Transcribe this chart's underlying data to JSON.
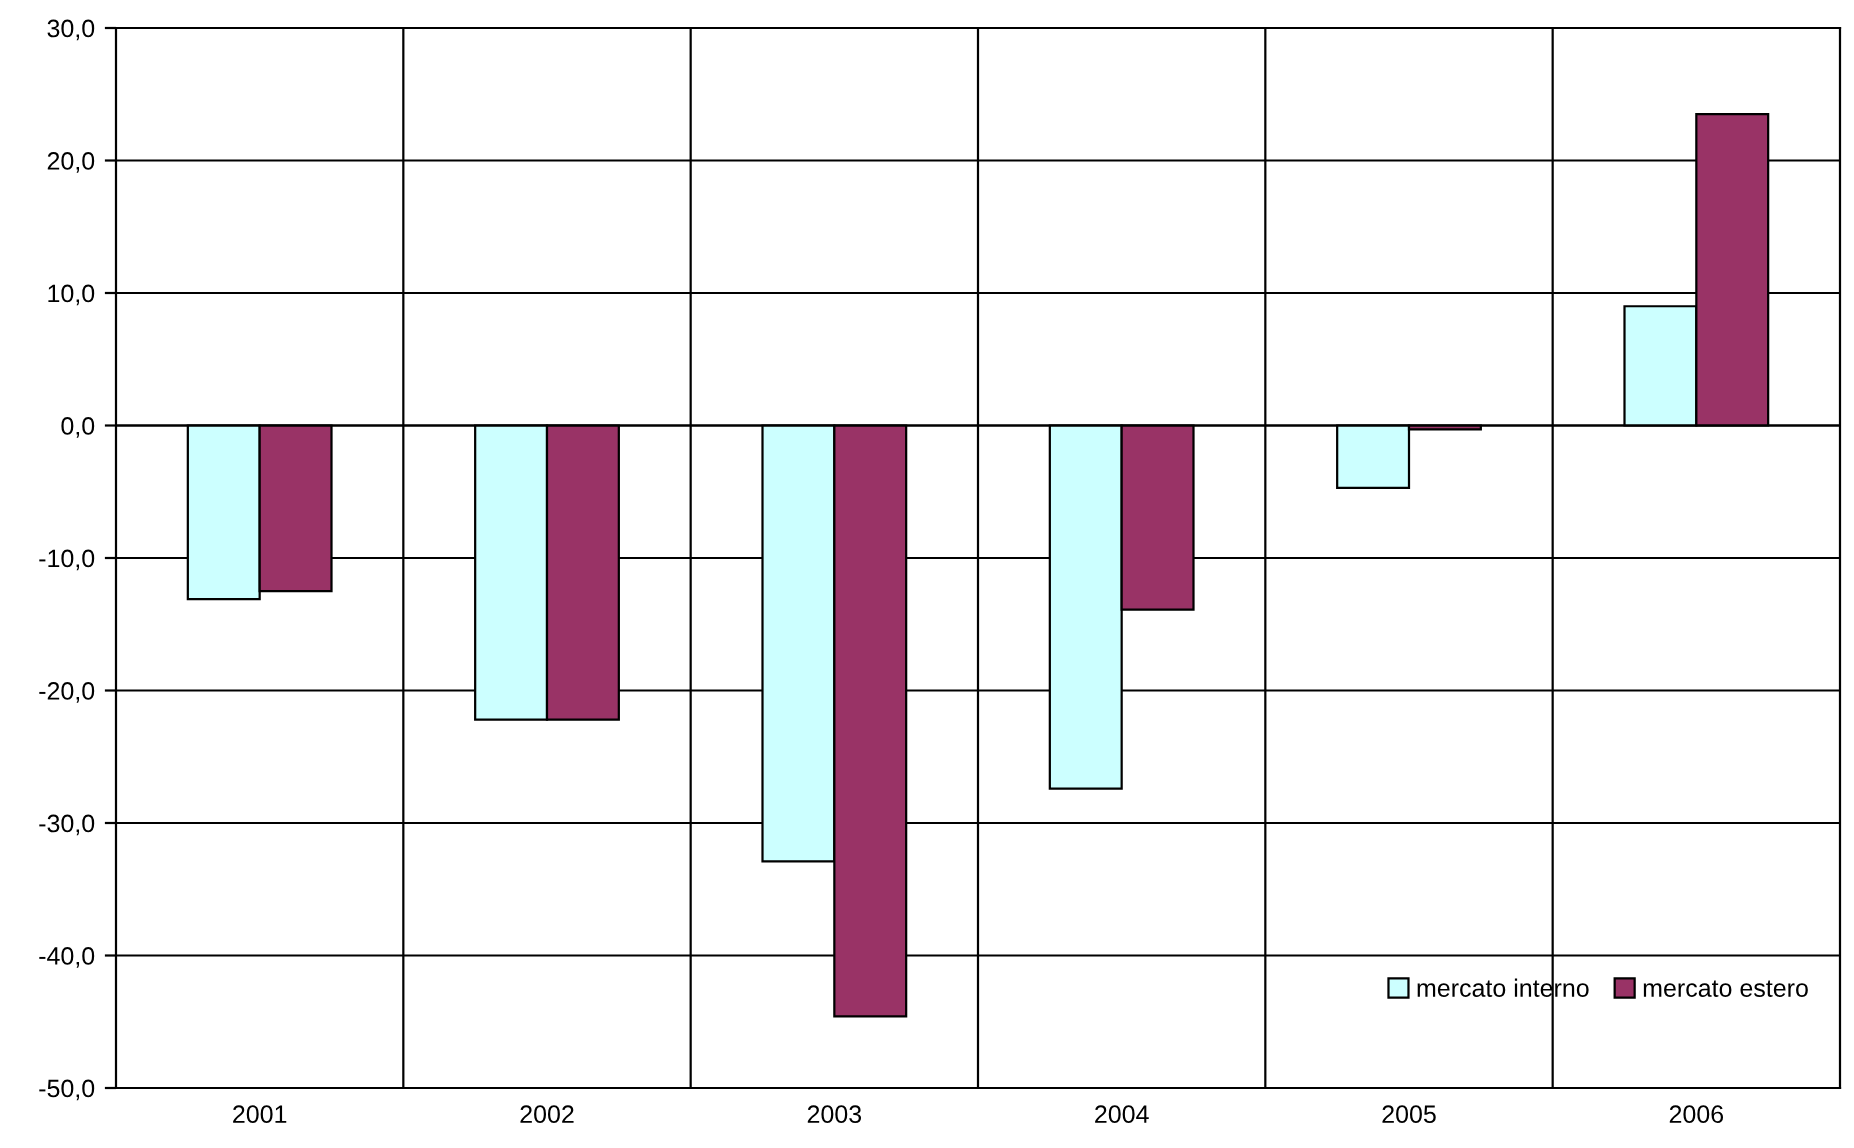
{
  "chart_data": {
    "type": "bar",
    "categories": [
      "2001",
      "2002",
      "2003",
      "2004",
      "2005",
      "2006"
    ],
    "series": [
      {
        "name": "mercato interno",
        "color": "#ccffff",
        "values": [
          -13.1,
          -22.2,
          -32.9,
          -27.4,
          -4.7,
          9.0
        ]
      },
      {
        "name": "mercato estero",
        "color": "#993366",
        "values": [
          -12.5,
          -22.2,
          -44.6,
          -13.9,
          -0.3,
          23.5
        ]
      }
    ],
    "ylim": [
      -50,
      30
    ],
    "yticks": [
      {
        "value": -50,
        "label": "-50,0"
      },
      {
        "value": -40,
        "label": "-40,0"
      },
      {
        "value": -30,
        "label": "-30,0"
      },
      {
        "value": -20,
        "label": "-20,0"
      },
      {
        "value": -10,
        "label": "-10,0"
      },
      {
        "value": 0,
        "label": "0,0"
      },
      {
        "value": 10,
        "label": "10,0"
      },
      {
        "value": 20,
        "label": "20,0"
      },
      {
        "value": 30,
        "label": "30,0"
      }
    ],
    "grid": true,
    "legend": "bottom right"
  }
}
